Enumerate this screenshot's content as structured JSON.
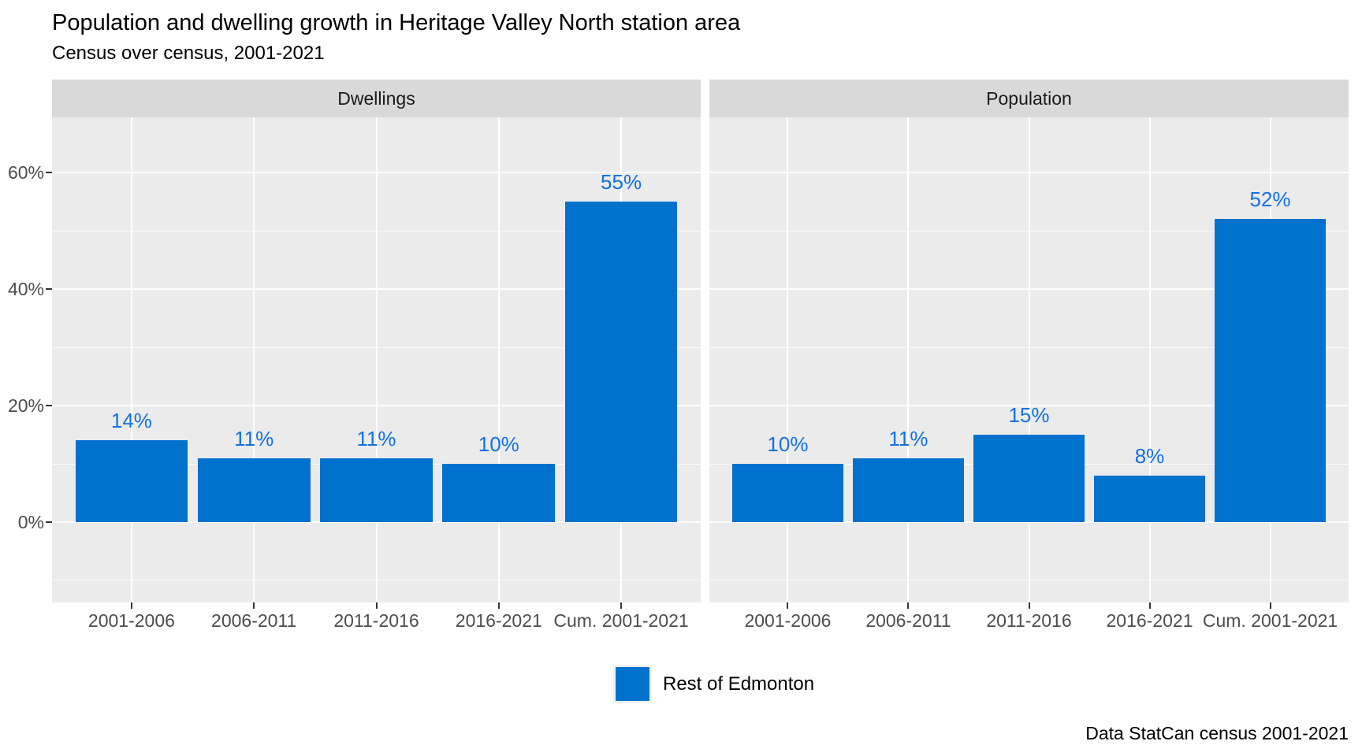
{
  "title": "Population and dwelling growth in Heritage Valley North station area",
  "subtitle": "Census over census, 2001-2021",
  "caption": "Data StatCan census 2001-2021",
  "legend": {
    "items": [
      {
        "label": "Rest of Edmonton",
        "color": "#0171CE"
      }
    ]
  },
  "colors": {
    "bar_fill": "#0171CE",
    "value_label": "#1172E0",
    "panel_background": "#EBEBEB",
    "strip_background": "#D9D9D9",
    "axis_text": "#4D4D4D",
    "tick_mark": "#333333",
    "grid_major": "#FFFFFF",
    "title_text": "#000000"
  },
  "chart_data": {
    "type": "bar",
    "title": "Population and dwelling growth in Heritage Valley North station area",
    "subtitle": "Census over census, 2001-2021",
    "caption": "Data StatCan census 2001-2021",
    "categories": [
      "2001-2006",
      "2006-2011",
      "2011-2016",
      "2016-2021",
      "Cum. 2001-2021"
    ],
    "facets": [
      {
        "label": "Dwellings",
        "values": [
          14,
          11,
          11,
          10,
          55
        ]
      },
      {
        "label": "Population",
        "values": [
          10,
          11,
          15,
          8,
          52
        ]
      }
    ],
    "value_suffix": "%",
    "y_axis": {
      "ticks": [
        0,
        20,
        40,
        60
      ],
      "minor": [
        -10,
        10,
        30,
        50
      ],
      "tick_suffix": "%",
      "range": [
        -13.8,
        69.5
      ]
    },
    "series_name": "Rest of Edmonton",
    "legend_position": "bottom",
    "grid": true
  }
}
